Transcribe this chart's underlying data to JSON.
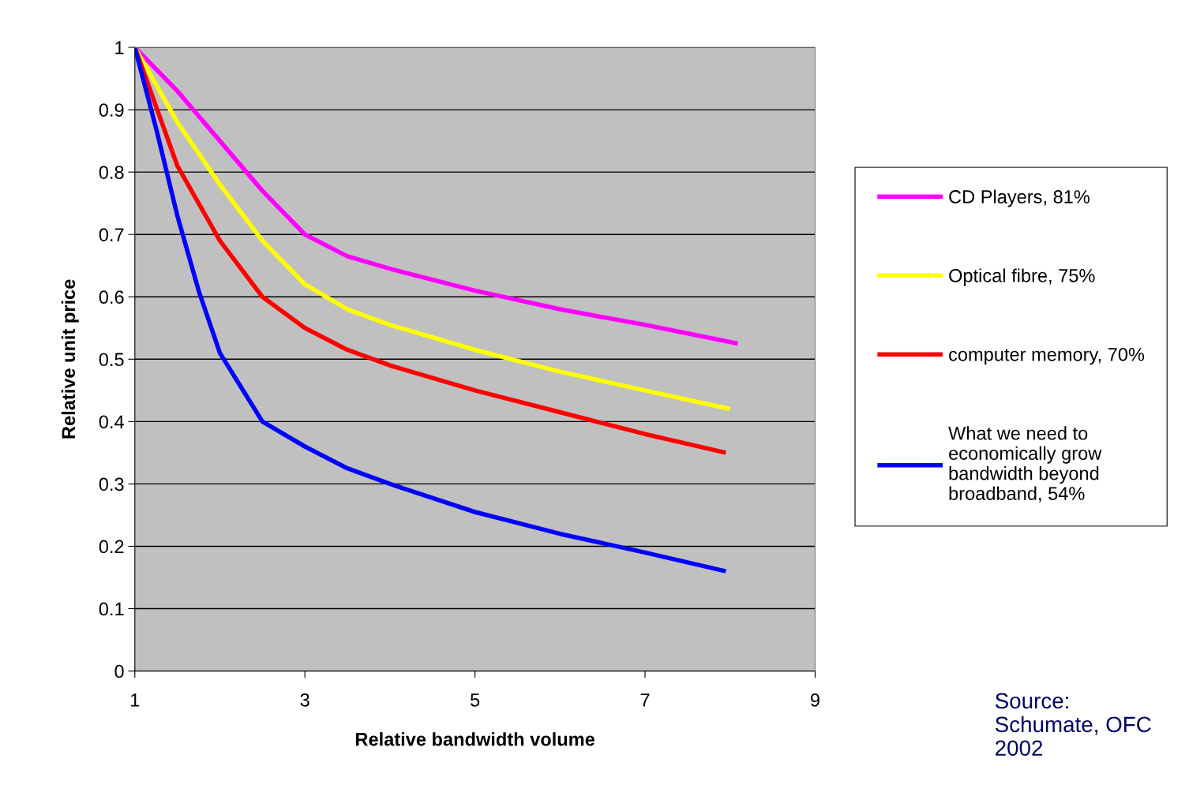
{
  "chart_data": {
    "type": "line",
    "xlabel": "Relative bandwidth volume",
    "ylabel": "Relative unit price",
    "xlim": [
      1,
      9
    ],
    "xticks": [
      1,
      3,
      5,
      7,
      9
    ],
    "ylim": [
      0,
      1
    ],
    "yticks": [
      0,
      0.1,
      0.2,
      0.3,
      0.4,
      0.5,
      0.6,
      0.7,
      0.8,
      0.9,
      1
    ],
    "grid": "y",
    "legend": "right",
    "line_style": "solid",
    "marker": "none",
    "series": [
      {
        "name": "CD Players, 81%",
        "color": "#ff00ff",
        "x": [
          1,
          1.5,
          2,
          2.5,
          3,
          3.5,
          4,
          5,
          6,
          7,
          8.09
        ],
        "values": [
          1,
          0.93,
          0.85,
          0.77,
          0.7,
          0.665,
          0.645,
          0.61,
          0.58,
          0.555,
          0.525
        ]
      },
      {
        "name": "Optical fibre, 75%",
        "color": "#ffff00",
        "x": [
          1,
          1.5,
          2,
          2.5,
          3,
          3.5,
          4,
          5,
          6,
          7,
          8
        ],
        "values": [
          1,
          0.88,
          0.78,
          0.69,
          0.62,
          0.58,
          0.555,
          0.515,
          0.48,
          0.45,
          0.42
        ]
      },
      {
        "name": "computer memory, 70%",
        "color": "#ff0000",
        "x": [
          1,
          1.5,
          2,
          2.5,
          3,
          3.5,
          4,
          5,
          6,
          7,
          7.95
        ],
        "values": [
          1,
          0.81,
          0.69,
          0.6,
          0.55,
          0.515,
          0.49,
          0.45,
          0.415,
          0.38,
          0.35
        ]
      },
      {
        "name": "What we need to\neconomically grow\nbandwidth beyond\nbroadband, 54%",
        "color": "#0000ff",
        "x": [
          1,
          1.25,
          1.5,
          1.75,
          2,
          2.5,
          3,
          3.5,
          4,
          5,
          6,
          7,
          7.95
        ],
        "values": [
          1,
          0.87,
          0.73,
          0.61,
          0.51,
          0.4,
          0.36,
          0.325,
          0.3,
          0.255,
          0.22,
          0.19,
          0.16
        ]
      }
    ],
    "annotations": [
      "Source:\nSchumate, OFC\n2002"
    ]
  }
}
